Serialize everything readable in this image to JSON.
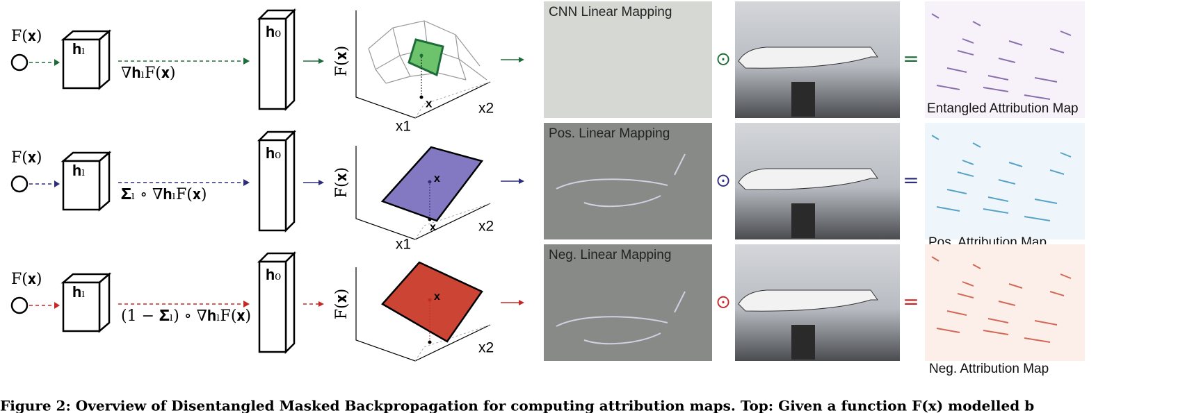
{
  "rows": [
    {
      "input_label": "F(𝐱)",
      "layer_label": "𝐡ₗ",
      "gradient_label": "∇𝐡ₗF(𝐱)",
      "output_layer_label": "𝐡₀",
      "plot": {
        "y_label": "F(𝐱)",
        "x1_label": "x1",
        "x2_label": "x2",
        "base_point_label": "x"
      },
      "mapping_title": "CNN Linear Mapping",
      "operator": "⊙",
      "equals": "=",
      "attribution_title": "Entangled Attribution Map"
    },
    {
      "input_label": "F(𝐱)",
      "layer_label": "𝐡ₗ",
      "gradient_label": "𝚺ₗ ∘ ∇𝐡ₗF(𝐱)",
      "output_layer_label": "𝐡₀",
      "plot": {
        "y_label": "F(𝐱)",
        "x1_label": "x1",
        "x2_label": "x2",
        "plane_point_label": "x",
        "base_point_label": "x"
      },
      "mapping_title": "Pos. Linear Mapping",
      "operator": "⊙",
      "equals": "=",
      "attribution_title": "Pos. Attribution Map"
    },
    {
      "input_label": "F(𝐱)",
      "layer_label": "𝐡ₗ",
      "gradient_label": "(1 − 𝚺ₗ) ∘ ∇𝐡ₗF(𝐱)",
      "output_layer_label": "𝐡₀",
      "plot": {
        "y_label": "F(𝐱)",
        "x2_label": "x2",
        "plane_point_label": "x"
      },
      "mapping_title": "Neg. Linear Mapping",
      "operator": "⊙",
      "equals": "=",
      "attribution_title": "Neg. Attribution Map"
    }
  ],
  "caption": "Figure 2: Overview of Disentangled Masked Backpropagation for computing attribution maps. Top: Given a function F(x) modelled b"
}
